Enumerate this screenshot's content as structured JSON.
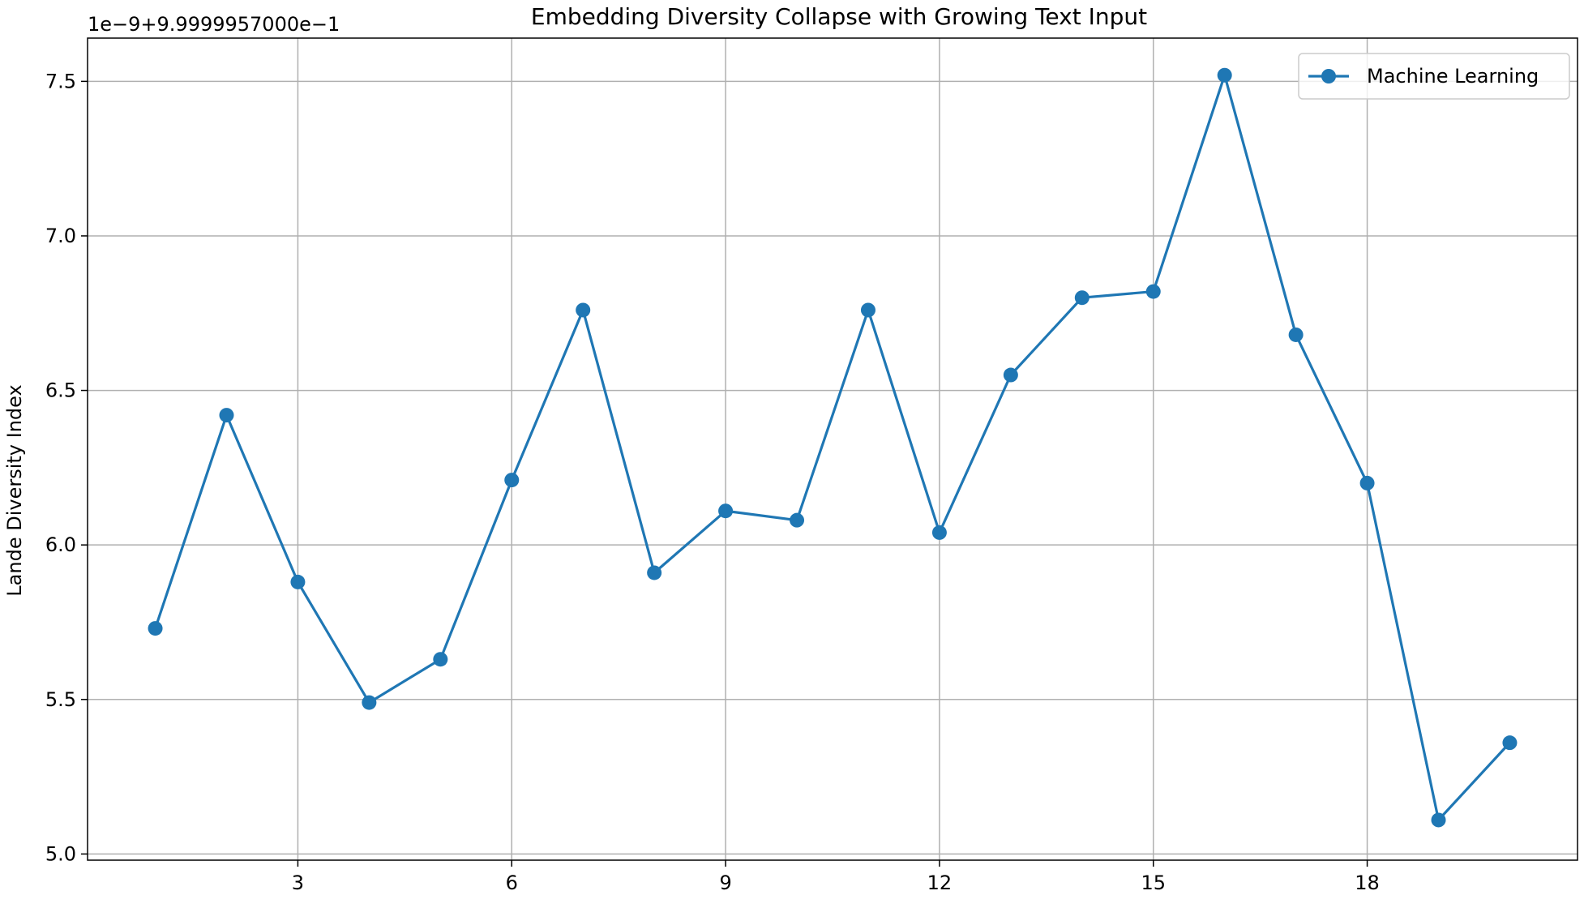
{
  "chart_data": {
    "type": "line",
    "title": "Embedding Diversity Collapse with Growing Text Input",
    "xlabel": "",
    "ylabel": "Lande Diversity Index",
    "y_offset_label": "1e−9+9.9999957000e−1",
    "xlim": [
      0.05,
      20.95
    ],
    "ylim": [
      4.98,
      7.64
    ],
    "x_ticks": [
      3,
      6,
      9,
      12,
      15,
      18
    ],
    "y_ticks": [
      5.0,
      5.5,
      6.0,
      6.5,
      7.0,
      7.5
    ],
    "x_tick_labels": [
      "3",
      "6",
      "9",
      "12",
      "15",
      "18"
    ],
    "y_tick_labels": [
      "5.0",
      "5.5",
      "6.0",
      "6.5",
      "7.0",
      "7.5"
    ],
    "grid": true,
    "legend_position": "top-right",
    "series": [
      {
        "name": "Machine Learning",
        "color": "#1f77b4",
        "marker": "circle",
        "x": [
          1,
          2,
          3,
          4,
          5,
          6,
          7,
          8,
          9,
          10,
          11,
          12,
          13,
          14,
          15,
          16,
          17,
          18,
          19,
          20
        ],
        "values": [
          5.73,
          6.42,
          5.88,
          5.49,
          5.63,
          6.21,
          6.76,
          5.91,
          6.11,
          6.08,
          6.76,
          6.04,
          6.55,
          6.8,
          6.82,
          7.52,
          6.68,
          6.2,
          5.11,
          5.36
        ]
      }
    ]
  }
}
